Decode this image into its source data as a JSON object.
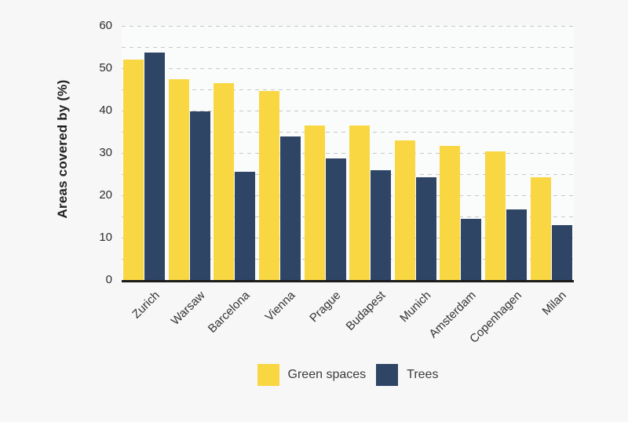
{
  "chart_data": {
    "type": "bar",
    "ylabel": "Areas covered by (%)",
    "xlabel": "",
    "ylim": [
      0,
      60
    ],
    "y_ticks": [
      0,
      10,
      20,
      30,
      40,
      50,
      60
    ],
    "gridline_interval": 5,
    "grid": "horizontal-dashed",
    "legend_position": "bottom-center",
    "categories": [
      "Zurich",
      "Warsaw",
      "Barcelona",
      "Vienna",
      "Prague",
      "Budapest",
      "Munich",
      "Amsterdam",
      "Copenhagen",
      "Milan"
    ],
    "series": [
      {
        "name": "Green spaces",
        "color": "#F9D743",
        "values": [
          52.0,
          47.4,
          46.4,
          44.7,
          36.5,
          36.4,
          32.9,
          31.6,
          30.4,
          24.3
        ]
      },
      {
        "name": "Trees",
        "color": "#2F4566",
        "values": [
          53.7,
          39.8,
          25.5,
          33.9,
          28.7,
          26.0,
          24.3,
          14.4,
          16.6,
          13.0
        ]
      }
    ]
  },
  "colors": {
    "background": "#f7f7f8",
    "plot_background": "#fafbfb",
    "gridline": "#c7c7c7",
    "axis_line": "#1b1b1b",
    "tick_text": "#2d2d2d"
  }
}
